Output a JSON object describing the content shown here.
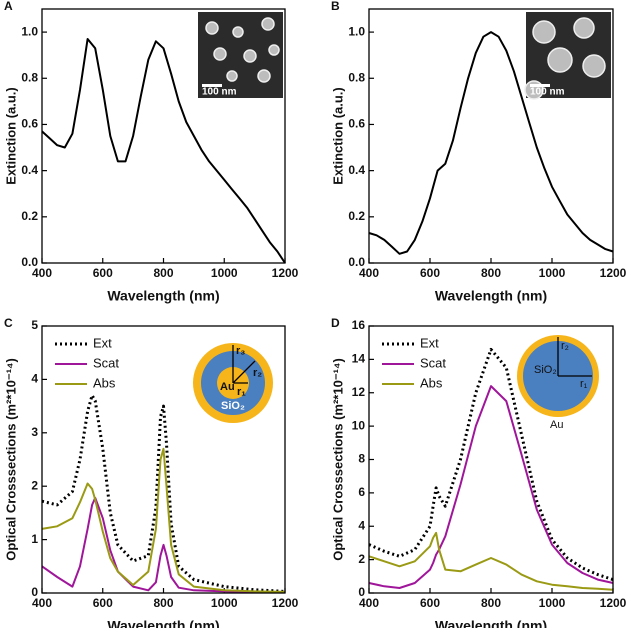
{
  "chart_data": [
    {
      "type": "line",
      "panel_label": "A",
      "x_label": "Wavelength (nm)",
      "y_label": "Extinction (a.u.)",
      "x": [
        400,
        425,
        450,
        475,
        500,
        525,
        550,
        575,
        600,
        625,
        650,
        675,
        700,
        725,
        750,
        775,
        800,
        825,
        850,
        875,
        900,
        925,
        950,
        975,
        1000,
        1025,
        1050,
        1075,
        1100,
        1125,
        1150,
        1175,
        1200
      ],
      "values": [
        0.57,
        0.54,
        0.51,
        0.5,
        0.56,
        0.75,
        0.97,
        0.93,
        0.75,
        0.55,
        0.44,
        0.44,
        0.55,
        0.72,
        0.88,
        0.96,
        0.93,
        0.82,
        0.7,
        0.61,
        0.55,
        0.49,
        0.44,
        0.4,
        0.36,
        0.32,
        0.28,
        0.24,
        0.19,
        0.14,
        0.09,
        0.05,
        0.0
      ],
      "color": "#000000",
      "xlim": [
        400,
        1200
      ],
      "ylim": [
        0,
        1.1
      ],
      "xticks": [
        400,
        600,
        800,
        1000,
        1200
      ],
      "yticks": [
        {
          "value": 0,
          "label": "0.0"
        },
        0.2,
        0.4,
        0.6,
        0.8,
        {
          "value": 1,
          "label": "1.0"
        }
      ],
      "scale_label": "100 nm"
    },
    {
      "type": "line",
      "panel_label": "B",
      "x_label": "Wavelength (nm)",
      "y_label": "Extinction (a.u.)",
      "x": [
        400,
        425,
        450,
        475,
        500,
        525,
        550,
        575,
        600,
        625,
        650,
        675,
        700,
        725,
        750,
        775,
        800,
        825,
        850,
        875,
        900,
        925,
        950,
        975,
        1000,
        1025,
        1050,
        1075,
        1100,
        1125,
        1150,
        1175,
        1200
      ],
      "values": [
        0.13,
        0.12,
        0.1,
        0.07,
        0.04,
        0.05,
        0.1,
        0.18,
        0.28,
        0.4,
        0.43,
        0.53,
        0.67,
        0.8,
        0.91,
        0.98,
        1.0,
        0.98,
        0.92,
        0.83,
        0.72,
        0.61,
        0.5,
        0.41,
        0.33,
        0.27,
        0.21,
        0.17,
        0.13,
        0.1,
        0.08,
        0.06,
        0.05
      ],
      "color": "#000000",
      "xlim": [
        400,
        1200
      ],
      "ylim": [
        0,
        1.1
      ],
      "xticks": [
        400,
        600,
        800,
        1000,
        1200
      ],
      "yticks": [
        {
          "value": 0,
          "label": "0.0"
        },
        0.2,
        0.4,
        0.6,
        0.8,
        {
          "value": 1,
          "label": "1.0"
        }
      ],
      "scale_label": "100 nm"
    },
    {
      "type": "line",
      "panel_label": "C",
      "x_label": "Wavelength (nm)",
      "y_label": "Optical Crosssections (m²*10⁻¹⁴)",
      "x": [
        400,
        450,
        500,
        525,
        550,
        565,
        575,
        600,
        625,
        650,
        700,
        750,
        775,
        790,
        800,
        810,
        825,
        850,
        900,
        1000,
        1100,
        1200
      ],
      "series": [
        {
          "name": "Ext",
          "color": "#000000",
          "dash": "dotted",
          "values": [
            1.72,
            1.65,
            1.9,
            2.5,
            3.4,
            3.7,
            3.6,
            2.7,
            1.5,
            0.9,
            0.6,
            0.7,
            1.6,
            3.3,
            3.5,
            2.8,
            1.3,
            0.5,
            0.25,
            0.12,
            0.06,
            0.03
          ]
        },
        {
          "name": "Scat",
          "color": "#a0169a",
          "dash": "solid",
          "values": [
            0.5,
            0.3,
            0.12,
            0.5,
            1.2,
            1.65,
            1.78,
            1.4,
            0.8,
            0.4,
            0.12,
            0.05,
            0.2,
            0.7,
            0.9,
            0.7,
            0.3,
            0.1,
            0.05,
            0.03,
            0.02,
            0.01
          ]
        },
        {
          "name": "Abs",
          "color": "#9a9a14",
          "dash": "solid",
          "values": [
            1.2,
            1.25,
            1.4,
            1.7,
            2.05,
            1.95,
            1.75,
            1.15,
            0.65,
            0.4,
            0.15,
            0.4,
            1.2,
            2.5,
            2.7,
            2.0,
            0.9,
            0.35,
            0.12,
            0.05,
            0.03,
            0.02
          ]
        }
      ],
      "xlim": [
        400,
        1200
      ],
      "ylim": [
        0,
        5
      ],
      "xticks": [
        400,
        600,
        800,
        1000,
        1200
      ],
      "yticks": [
        0,
        1,
        2,
        3,
        4,
        5
      ],
      "inset_labels": [
        "r₃",
        "r₂",
        "Au",
        "r₁",
        "SiO₂"
      ]
    },
    {
      "type": "line",
      "panel_label": "D",
      "x_label": "Wavelength (nm)",
      "y_label": "Optical Crosssections (m²*10⁻¹⁴)",
      "x": [
        400,
        450,
        500,
        550,
        600,
        610,
        620,
        630,
        650,
        700,
        750,
        800,
        850,
        900,
        950,
        1000,
        1050,
        1100,
        1150,
        1200
      ],
      "series": [
        {
          "name": "Ext",
          "color": "#000000",
          "dash": "dotted",
          "values": [
            2.9,
            2.5,
            2.2,
            2.6,
            4.0,
            5.2,
            6.3,
            5.8,
            5.2,
            8.0,
            12.0,
            14.6,
            13.5,
            9.5,
            5.5,
            3.2,
            2.1,
            1.5,
            1.1,
            0.8
          ]
        },
        {
          "name": "Scat",
          "color": "#a0169a",
          "dash": "solid",
          "values": [
            0.6,
            0.4,
            0.3,
            0.6,
            1.4,
            1.8,
            2.3,
            2.6,
            3.4,
            6.5,
            10.0,
            12.4,
            11.5,
            8.3,
            5.0,
            2.9,
            1.8,
            1.2,
            0.8,
            0.6
          ]
        },
        {
          "name": "Abs",
          "color": "#9a9a14",
          "dash": "solid",
          "values": [
            2.2,
            1.9,
            1.6,
            1.9,
            2.8,
            3.3,
            3.6,
            2.6,
            1.4,
            1.3,
            1.7,
            2.1,
            1.7,
            1.1,
            0.7,
            0.5,
            0.4,
            0.3,
            0.25,
            0.2
          ]
        }
      ],
      "xlim": [
        400,
        1200
      ],
      "ylim": [
        0,
        16
      ],
      "xticks": [
        400,
        600,
        800,
        1000,
        1200
      ],
      "yticks": [
        0,
        2,
        4,
        6,
        8,
        10,
        12,
        14,
        16
      ],
      "inset_labels": [
        "r₂",
        "SiO₂",
        "r₁",
        "Au"
      ]
    }
  ]
}
